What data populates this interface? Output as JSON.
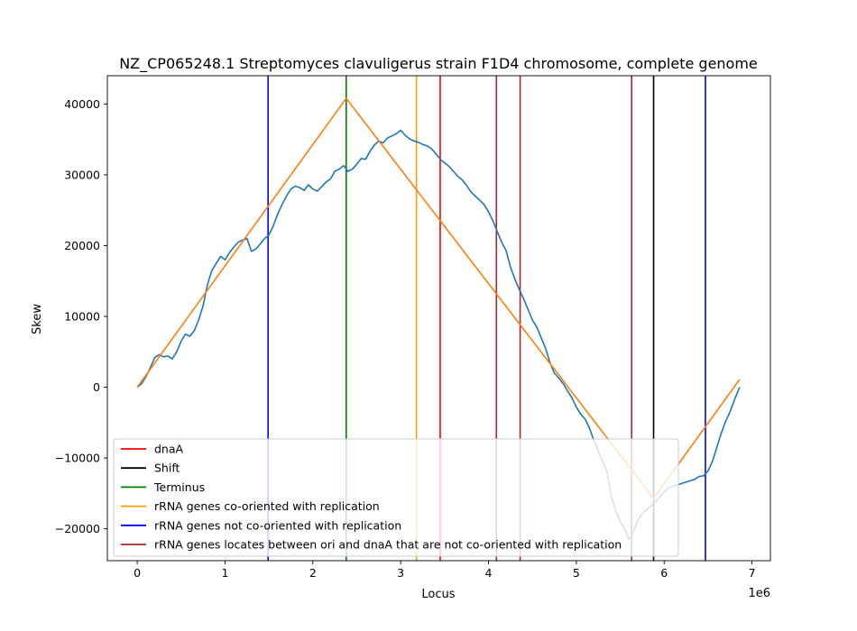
{
  "chart_data": {
    "type": "line",
    "title": "NZ_CP065248.1 Streptomyces clavuligerus strain F1D4 chromosome, complete genome",
    "xlabel": "Locus",
    "ylabel": "Skew",
    "x_multiplier_label": "1e6",
    "xlim": [
      -0.34,
      7.21
    ],
    "ylim": [
      -24500,
      44000
    ],
    "x_ticks": [
      0,
      1,
      2,
      3,
      4,
      5,
      6,
      7
    ],
    "x_tick_labels": [
      "0",
      "1",
      "2",
      "3",
      "4",
      "5",
      "6",
      "7"
    ],
    "y_ticks": [
      -20000,
      -10000,
      0,
      10000,
      20000,
      30000,
      40000
    ],
    "y_tick_labels": [
      "−20000",
      "−10000",
      "0",
      "10000",
      "20000",
      "30000",
      "40000"
    ],
    "grid": false,
    "legend_position": "lower-left",
    "series": [
      {
        "color": "#1f77b4",
        "x": [
          0,
          0.05,
          0.1,
          0.15,
          0.2,
          0.25,
          0.3,
          0.35,
          0.4,
          0.45,
          0.5,
          0.55,
          0.6,
          0.65,
          0.7,
          0.75,
          0.8,
          0.85,
          0.9,
          0.95,
          1.0,
          1.05,
          1.1,
          1.15,
          1.2,
          1.25,
          1.3,
          1.35,
          1.4,
          1.45,
          1.5,
          1.55,
          1.6,
          1.65,
          1.7,
          1.75,
          1.8,
          1.85,
          1.9,
          1.95,
          2.0,
          2.05,
          2.1,
          2.15,
          2.2,
          2.25,
          2.3,
          2.35,
          2.4,
          2.45,
          2.5,
          2.55,
          2.6,
          2.65,
          2.7,
          2.75,
          2.8,
          2.85,
          2.9,
          2.95,
          3.0,
          3.05,
          3.1,
          3.15,
          3.2,
          3.25,
          3.3,
          3.35,
          3.4,
          3.45,
          3.5,
          3.55,
          3.6,
          3.65,
          3.7,
          3.75,
          3.8,
          3.85,
          3.9,
          3.95,
          4.0,
          4.05,
          4.1,
          4.15,
          4.2,
          4.25,
          4.3,
          4.35,
          4.4,
          4.45,
          4.5,
          4.55,
          4.6,
          4.65,
          4.7,
          4.75,
          4.8,
          4.85,
          4.9,
          4.95,
          5.0,
          5.05,
          5.1,
          5.15,
          5.2,
          5.25,
          5.3,
          5.35,
          5.4,
          5.45,
          5.5,
          5.55,
          5.6,
          5.65,
          5.7,
          5.75,
          5.8,
          5.85,
          5.9,
          5.95,
          6.0,
          6.05,
          6.1,
          6.15,
          6.2,
          6.25,
          6.3,
          6.35,
          6.4,
          6.45,
          6.5,
          6.55,
          6.6,
          6.65,
          6.7,
          6.75,
          6.8,
          6.86
        ],
        "values": [
          0,
          500,
          1500,
          2800,
          4200,
          4600,
          4300,
          4400,
          4000,
          5000,
          6500,
          7500,
          7200,
          8000,
          9500,
          11500,
          14500,
          16500,
          17500,
          18500,
          18000,
          19000,
          19800,
          20500,
          20800,
          21000,
          19200,
          19500,
          20200,
          21000,
          21500,
          22800,
          24500,
          25800,
          27000,
          28000,
          28400,
          28200,
          27800,
          28600,
          28000,
          27700,
          28300,
          29000,
          29400,
          30500,
          30800,
          31300,
          30500,
          30800,
          31500,
          32300,
          32200,
          33300,
          34200,
          34800,
          34500,
          35200,
          35500,
          35800,
          36300,
          35600,
          35100,
          34800,
          34600,
          34300,
          34100,
          33700,
          33000,
          32200,
          31700,
          31200,
          30500,
          29800,
          29300,
          28500,
          27600,
          27000,
          26400,
          25800,
          24800,
          23500,
          22000,
          20500,
          19300,
          17000,
          15300,
          13800,
          12500,
          11000,
          9500,
          8500,
          7000,
          5500,
          3500,
          2000,
          1300,
          500,
          -500,
          -1500,
          -2800,
          -3800,
          -4500,
          -5800,
          -7500,
          -9000,
          -10500,
          -12000,
          -15500,
          -17500,
          -19000,
          -20000,
          -21500,
          -20500,
          -18800,
          -17800,
          -17300,
          -16800,
          -16200,
          -15500,
          -14800,
          -14200,
          -14000,
          -13800,
          -13600,
          -13400,
          -13200,
          -13000,
          -12600,
          -12500,
          -11800,
          -10500,
          -8500,
          -6500,
          -4800,
          -3500,
          -1800,
          0
        ]
      },
      {
        "color": "#ff7f0e",
        "x": [
          0,
          2.38,
          5.88,
          6.86
        ],
        "values": [
          0,
          40800,
          -15700,
          1100
        ]
      }
    ],
    "vertical_lines": [
      {
        "x": 1.49,
        "color": "#0000ff"
      },
      {
        "x": 2.38,
        "color": "#008000"
      },
      {
        "x": 3.18,
        "color": "#ffa500"
      },
      {
        "x": 3.45,
        "color": "#ff0000"
      },
      {
        "x": 4.09,
        "color": "#a52a2a"
      },
      {
        "x": 4.36,
        "color": "#a52a2a"
      },
      {
        "x": 5.63,
        "color": "#a52a2a"
      },
      {
        "x": 5.88,
        "color": "#000000"
      },
      {
        "x": 6.47,
        "color": "#0000ff"
      }
    ],
    "legend": [
      {
        "label": "dnaA",
        "color": "#ff0000"
      },
      {
        "label": "Shift",
        "color": "#000000"
      },
      {
        "label": "Terminus",
        "color": "#008000"
      },
      {
        "label": "rRNA genes co-oriented with replication",
        "color": "#ffa500"
      },
      {
        "label": "rRNA genes not co-oriented with replication",
        "color": "#0000ff"
      },
      {
        "label": "rRNA genes locates between ori and dnaA that are not co-oriented with replication",
        "color": "#a52a2a"
      }
    ]
  }
}
